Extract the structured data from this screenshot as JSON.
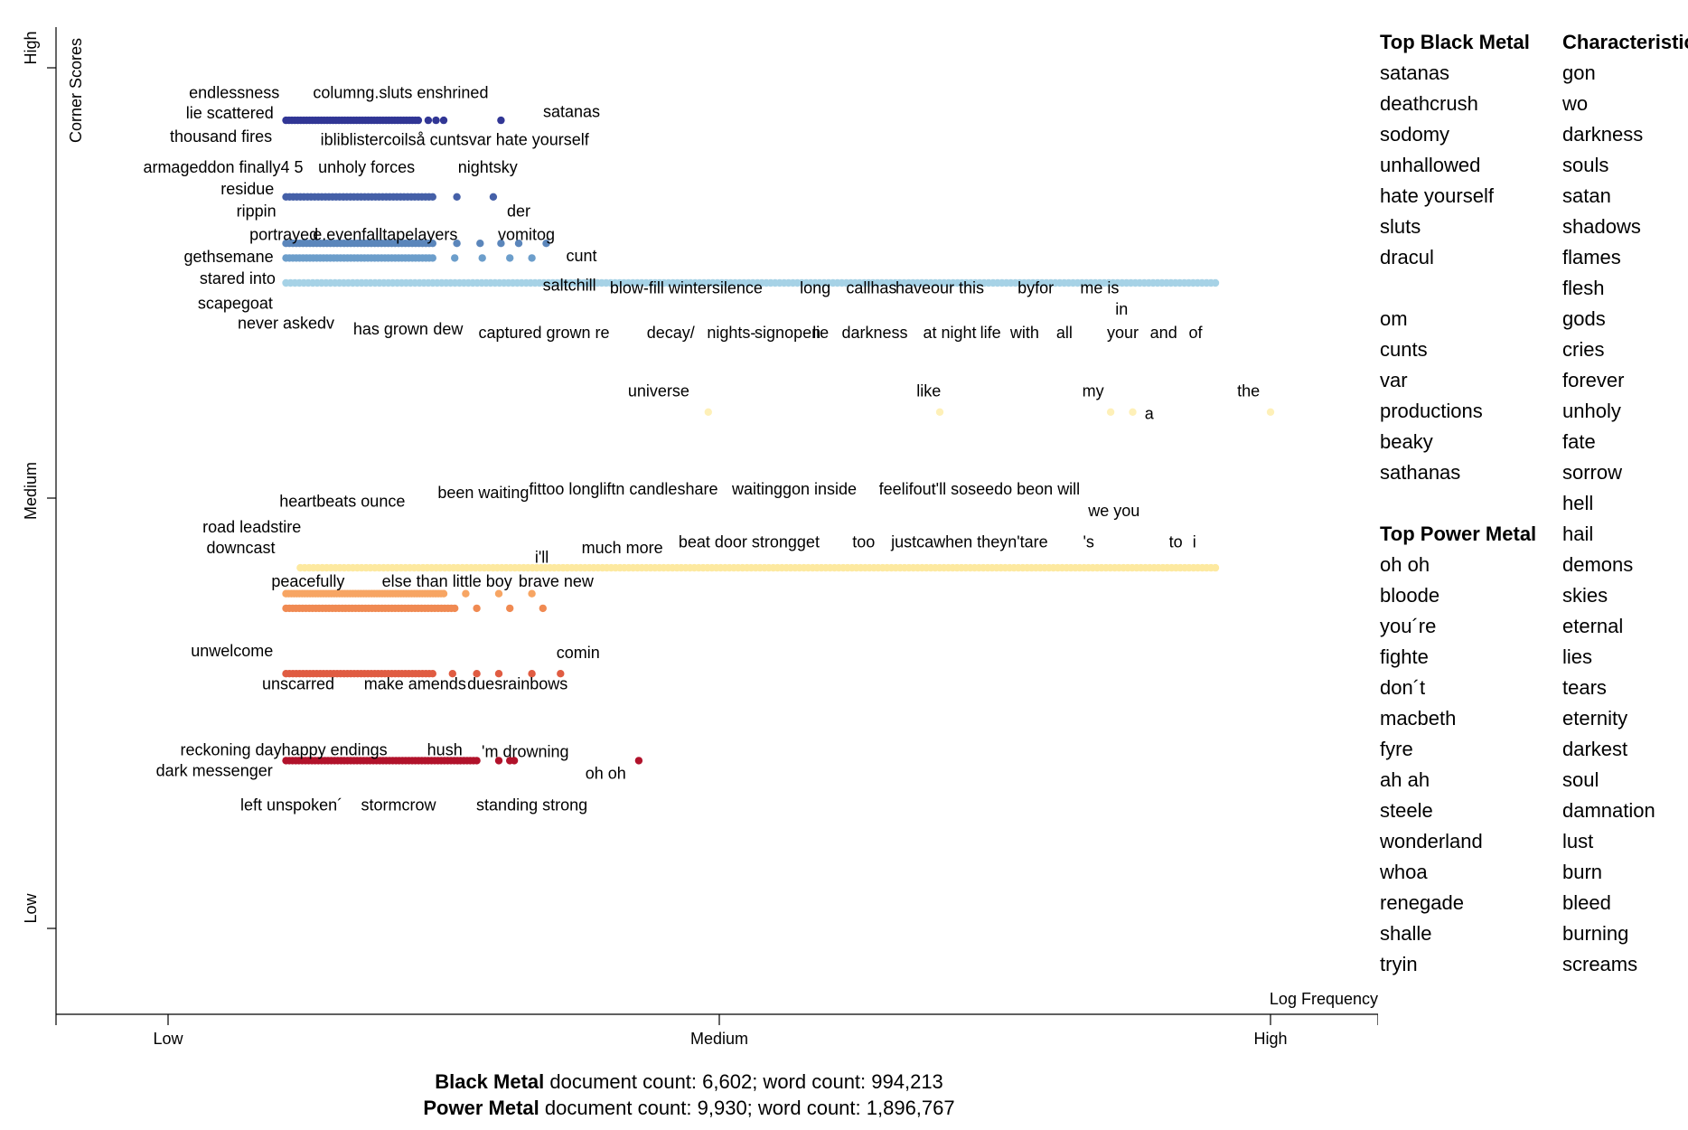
{
  "chart_data": {
    "type": "scatter",
    "xlabel": "Log Frequency",
    "ylabel": "Corner Scores",
    "x_ticks": [
      "Low",
      "Medium",
      "High"
    ],
    "y_ticks": [
      "Low",
      "Medium",
      "High"
    ],
    "x_range": [
      0,
      1
    ],
    "y_range": [
      0,
      1
    ],
    "legend": "none",
    "grid": false,
    "rows": [
      {
        "y": 0.939,
        "x_start": 0.107,
        "x_end": 0.227,
        "count": 46,
        "color": "#313695",
        "tail": [
          0.236,
          0.243,
          0.25,
          0.302
        ]
      },
      {
        "y": 0.85,
        "x_start": 0.107,
        "x_end": 0.24,
        "count": 42,
        "color": "#4560a8",
        "tail": [
          0.262,
          0.295
        ]
      },
      {
        "y": 0.796,
        "x_start": 0.107,
        "x_end": 0.24,
        "count": 44,
        "color": "#5b86bb",
        "tail": [
          0.262,
          0.283,
          0.302,
          0.318,
          0.343
        ]
      },
      {
        "y": 0.779,
        "x_start": 0.107,
        "x_end": 0.24,
        "count": 44,
        "color": "#6c9ecb",
        "tail": [
          0.26,
          0.285,
          0.31,
          0.33
        ]
      },
      {
        "y": 0.75,
        "x_start": 0.107,
        "x_end": 0.95,
        "count": 210,
        "color": "#a6d2e6",
        "tail": []
      },
      {
        "y": 0.419,
        "x_start": 0.12,
        "x_end": 0.95,
        "count": 210,
        "color": "#fde9a0",
        "tail": []
      },
      {
        "y": 0.389,
        "x_start": 0.107,
        "x_end": 0.25,
        "count": 60,
        "color": "#f7a563",
        "tail": [
          0.27,
          0.3,
          0.33
        ]
      },
      {
        "y": 0.372,
        "x_start": 0.107,
        "x_end": 0.26,
        "count": 52,
        "color": "#f08a52",
        "tail": [
          0.28,
          0.31,
          0.34
        ]
      },
      {
        "y": 0.296,
        "x_start": 0.107,
        "x_end": 0.24,
        "count": 44,
        "color": "#e05c42",
        "tail": [
          0.258,
          0.28,
          0.3,
          0.33,
          0.356
        ]
      },
      {
        "y": 0.195,
        "x_start": 0.107,
        "x_end": 0.28,
        "count": 60,
        "color": "#b1122b",
        "tail": [
          0.3,
          0.31,
          0.314,
          0.427
        ]
      }
    ],
    "middle_points": [
      {
        "x": 0.49,
        "y": 0.6,
        "color": "#fef0b8"
      },
      {
        "x": 0.7,
        "y": 0.6,
        "color": "#fef0b8"
      },
      {
        "x": 0.855,
        "y": 0.6,
        "color": "#fef0b8"
      },
      {
        "x": 0.875,
        "y": 0.6,
        "color": "#fef0b8"
      },
      {
        "x": 1.0,
        "y": 0.6,
        "color": "#fef0b8"
      }
    ],
    "labels": [
      {
        "t": "endlessness",
        "x": 0.06,
        "y": 0.965,
        "a": "middle"
      },
      {
        "t": "columng.sluts enshrined",
        "x": 0.211,
        "y": 0.965,
        "a": "middle"
      },
      {
        "t": "lie scattered",
        "x": 0.056,
        "y": 0.941,
        "a": "middle"
      },
      {
        "t": "satanas",
        "x": 0.366,
        "y": 0.943,
        "a": "middle"
      },
      {
        "t": "thousand fires",
        "x": 0.048,
        "y": 0.914,
        "a": "middle"
      },
      {
        "t": "ibliblistercoilså cuntsvar hate yourself",
        "x": 0.26,
        "y": 0.91,
        "a": "middle"
      },
      {
        "t": "armageddon finally4 5",
        "x": 0.05,
        "y": 0.878,
        "a": "middle"
      },
      {
        "t": "unholy forces",
        "x": 0.18,
        "y": 0.878,
        "a": "middle"
      },
      {
        "t": "nightsky",
        "x": 0.29,
        "y": 0.878,
        "a": "middle"
      },
      {
        "t": "residue",
        "x": 0.072,
        "y": 0.853,
        "a": "middle"
      },
      {
        "t": "rippin",
        "x": 0.08,
        "y": 0.827,
        "a": "middle"
      },
      {
        "t": "der",
        "x": 0.318,
        "y": 0.827,
        "a": "middle"
      },
      {
        "t": "portrayed",
        "x": 0.105,
        "y": 0.8,
        "a": "middle"
      },
      {
        "t": "e.evenfalltapelayers",
        "x": 0.197,
        "y": 0.8,
        "a": "middle"
      },
      {
        "t": "vomitog",
        "x": 0.325,
        "y": 0.8,
        "a": "middle"
      },
      {
        "t": "gethsemane",
        "x": 0.055,
        "y": 0.774,
        "a": "middle"
      },
      {
        "t": "cunt",
        "x": 0.375,
        "y": 0.775,
        "a": "middle"
      },
      {
        "t": "stared into",
        "x": 0.063,
        "y": 0.749,
        "a": "middle"
      },
      {
        "t": "saltchill",
        "x": 0.364,
        "y": 0.741,
        "a": "middle"
      },
      {
        "t": "blow-fill wintersilence",
        "x": 0.47,
        "y": 0.738,
        "a": "middle"
      },
      {
        "t": "long",
        "x": 0.587,
        "y": 0.738,
        "a": "middle"
      },
      {
        "t": "callhas",
        "x": 0.638,
        "y": 0.738,
        "a": "middle"
      },
      {
        "t": "haveour this",
        "x": 0.7,
        "y": 0.738,
        "a": "middle"
      },
      {
        "t": "byfor",
        "x": 0.787,
        "y": 0.738,
        "a": "middle"
      },
      {
        "t": "me is",
        "x": 0.845,
        "y": 0.738,
        "a": "middle"
      },
      {
        "t": "scapegoat",
        "x": 0.061,
        "y": 0.72,
        "a": "middle"
      },
      {
        "t": "in",
        "x": 0.865,
        "y": 0.713,
        "a": "middle"
      },
      {
        "t": "never askedv",
        "x": 0.107,
        "y": 0.697,
        "a": "middle"
      },
      {
        "t": "has grown",
        "x": 0.202,
        "y": 0.69,
        "a": "middle"
      },
      {
        "t": "dew",
        "x": 0.254,
        "y": 0.69,
        "a": "middle"
      },
      {
        "t": "captured grown re",
        "x": 0.341,
        "y": 0.686,
        "a": "middle"
      },
      {
        "t": "decay/",
        "x": 0.456,
        "y": 0.686,
        "a": "middle"
      },
      {
        "t": "nights-",
        "x": 0.511,
        "y": 0.686,
        "a": "middle"
      },
      {
        "t": "signopen",
        "x": 0.562,
        "y": 0.686,
        "a": "middle"
      },
      {
        "t": "lie",
        "x": 0.592,
        "y": 0.686,
        "a": "middle"
      },
      {
        "t": "darkness",
        "x": 0.641,
        "y": 0.686,
        "a": "middle"
      },
      {
        "t": "at night",
        "x": 0.709,
        "y": 0.686,
        "a": "middle"
      },
      {
        "t": "life",
        "x": 0.746,
        "y": 0.686,
        "a": "middle"
      },
      {
        "t": "with",
        "x": 0.777,
        "y": 0.686,
        "a": "middle"
      },
      {
        "t": "all",
        "x": 0.813,
        "y": 0.686,
        "a": "middle"
      },
      {
        "t": "your",
        "x": 0.866,
        "y": 0.686,
        "a": "middle"
      },
      {
        "t": "and",
        "x": 0.903,
        "y": 0.686,
        "a": "middle"
      },
      {
        "t": "of",
        "x": 0.932,
        "y": 0.686,
        "a": "middle"
      },
      {
        "t": "universe",
        "x": 0.445,
        "y": 0.618,
        "a": "middle"
      },
      {
        "t": "like",
        "x": 0.69,
        "y": 0.618,
        "a": "middle"
      },
      {
        "t": "my",
        "x": 0.839,
        "y": 0.618,
        "a": "middle"
      },
      {
        "t": "the",
        "x": 0.98,
        "y": 0.618,
        "a": "middle"
      },
      {
        "t": "a",
        "x": 0.89,
        "y": 0.592,
        "a": "middle"
      },
      {
        "t": "been waiting",
        "x": 0.286,
        "y": 0.5,
        "a": "middle"
      },
      {
        "t": "fittoo longliftn candleshare",
        "x": 0.413,
        "y": 0.504,
        "a": "middle"
      },
      {
        "t": "waitinggon inside",
        "x": 0.568,
        "y": 0.504,
        "a": "middle"
      },
      {
        "t": "feelifout'll soseedo beon will",
        "x": 0.736,
        "y": 0.504,
        "a": "middle"
      },
      {
        "t": "heartbeats ounce",
        "x": 0.158,
        "y": 0.49,
        "a": "middle"
      },
      {
        "t": "we you",
        "x": 0.858,
        "y": 0.479,
        "a": "middle"
      },
      {
        "t": "road leadstire",
        "x": 0.076,
        "y": 0.46,
        "a": "middle"
      },
      {
        "t": "downcast",
        "x": 0.066,
        "y": 0.436,
        "a": "middle"
      },
      {
        "t": "i'll",
        "x": 0.339,
        "y": 0.425,
        "a": "middle"
      },
      {
        "t": "much more",
        "x": 0.412,
        "y": 0.436,
        "a": "middle"
      },
      {
        "t": "beat door strongget",
        "x": 0.527,
        "y": 0.443,
        "a": "middle"
      },
      {
        "t": "too",
        "x": 0.631,
        "y": 0.443,
        "a": "middle"
      },
      {
        "t": "justcawhen theyn'tare",
        "x": 0.727,
        "y": 0.443,
        "a": "middle"
      },
      {
        "t": "'s",
        "x": 0.835,
        "y": 0.443,
        "a": "middle"
      },
      {
        "t": "to",
        "x": 0.914,
        "y": 0.443,
        "a": "middle"
      },
      {
        "t": "i",
        "x": 0.931,
        "y": 0.443,
        "a": "middle"
      },
      {
        "t": "peacefully",
        "x": 0.127,
        "y": 0.397,
        "a": "middle"
      },
      {
        "t": "else than little boy",
        "x": 0.253,
        "y": 0.397,
        "a": "middle"
      },
      {
        "t": "brave new",
        "x": 0.352,
        "y": 0.397,
        "a": "middle"
      },
      {
        "t": "unwelcome",
        "x": 0.058,
        "y": 0.316,
        "a": "middle"
      },
      {
        "t": "comin",
        "x": 0.372,
        "y": 0.314,
        "a": "middle"
      },
      {
        "t": "unscarred",
        "x": 0.118,
        "y": 0.278,
        "a": "middle"
      },
      {
        "t": "make amends",
        "x": 0.224,
        "y": 0.278,
        "a": "middle"
      },
      {
        "t": "duesrainbows",
        "x": 0.317,
        "y": 0.278,
        "a": "middle"
      },
      {
        "t": "reckoning dayhappy endings",
        "x": 0.105,
        "y": 0.201,
        "a": "middle"
      },
      {
        "t": "hush",
        "x": 0.251,
        "y": 0.201,
        "a": "middle"
      },
      {
        "t": "'m drowning",
        "x": 0.324,
        "y": 0.199,
        "a": "middle"
      },
      {
        "t": "dark messenger",
        "x": 0.042,
        "y": 0.177,
        "a": "middle"
      },
      {
        "t": "oh oh",
        "x": 0.397,
        "y": 0.174,
        "a": "middle"
      },
      {
        "t": "left unspoken´",
        "x": 0.112,
        "y": 0.137,
        "a": "middle"
      },
      {
        "t": "stormcrow",
        "x": 0.209,
        "y": 0.137,
        "a": "middle"
      },
      {
        "t": "standing strong",
        "x": 0.33,
        "y": 0.137,
        "a": "middle"
      }
    ]
  },
  "side_panel": {
    "black_heading": "Top Black Metal",
    "black_terms_a": [
      "satanas",
      "deathcrush",
      "sodomy",
      "unhallowed",
      "hate yourself",
      "sluts",
      "dracul"
    ],
    "black_terms_b": [
      "om",
      "cunts",
      "var",
      "productions",
      "beaky",
      "sathanas"
    ],
    "power_heading": "Top Power Metal",
    "power_terms": [
      "oh oh",
      "bloode",
      "you´re",
      "fighte",
      "don´t",
      "macbeth",
      "fyre",
      "ah ah",
      "steele",
      "wonderland",
      "whoa",
      "renegade",
      "shalle",
      "tryin"
    ],
    "char_heading": "Characteristic",
    "char_terms": [
      "gon",
      "wo",
      "darkness",
      "souls",
      "satan",
      "shadows",
      "flames",
      "flesh",
      "gods",
      "cries",
      "forever",
      "unholy",
      "fate",
      "sorrow",
      "hell",
      "hail",
      "demons",
      "skies",
      "eternal",
      "lies",
      "tears",
      "eternity",
      "darkest",
      "soul",
      "damnation",
      "lust",
      "burn",
      "bleed",
      "burning",
      "screams"
    ]
  },
  "footer": {
    "line1_bold": "Black Metal",
    "line1_rest": " document count: 6,602; word count: 994,213",
    "line2_bold": "Power Metal",
    "line2_rest": " document count: 9,930; word count: 1,896,767"
  }
}
